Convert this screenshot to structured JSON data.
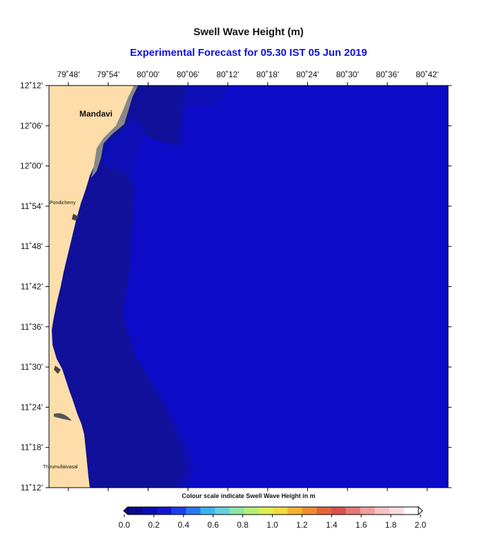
{
  "title": "Swell Wave Height (m)",
  "subtitle": "Experimental Forecast for  05.30 IST 05 Jun 2019",
  "x_ticks": [
    "79˚48'",
    "79˚54'",
    "80˚00'",
    "80˚06'",
    "80˚12'",
    "80˚18'",
    "80˚24'",
    "80˚30'",
    "80˚36'",
    "80˚42'"
  ],
  "y_ticks": [
    "12˚12'",
    "12˚06'",
    "12˚00'",
    "11˚54'",
    "11˚48'",
    "11˚42'",
    "11˚36'",
    "11˚30'",
    "11˚24'",
    "11˚18'",
    "11˚12'"
  ],
  "places": {
    "mandavi": "Mandavi",
    "pondicherry": "Pondicherry",
    "thirumullaivasal": "Thirumullaivasal"
  },
  "colorbar": {
    "caption": "Colour scale indicate Swell Wave Height in m",
    "labels": [
      "0.0",
      "0.2",
      "0.4",
      "0.6",
      "0.8",
      "1.0",
      "1.2",
      "1.4",
      "1.6",
      "1.8",
      "2.0"
    ],
    "colors": [
      "#0a0a8c",
      "#0c0cb4",
      "#1414d2",
      "#1e3cf0",
      "#2878f0",
      "#3cb4f0",
      "#64d2dc",
      "#8ce6aa",
      "#b4f078",
      "#dcf050",
      "#f0dc3c",
      "#f0b432",
      "#f08c32",
      "#e6643c",
      "#dc5050",
      "#e67878",
      "#f0a0a0",
      "#f5c3c3",
      "#fadcdc",
      "#ffffff"
    ]
  },
  "colors": {
    "land": "#fddeaa",
    "shore_shelf": "#888888",
    "offshore_sea": "#0b0bc8",
    "nearshore_sea": "#10109a",
    "mid_sea": "#0e0eb6"
  }
}
